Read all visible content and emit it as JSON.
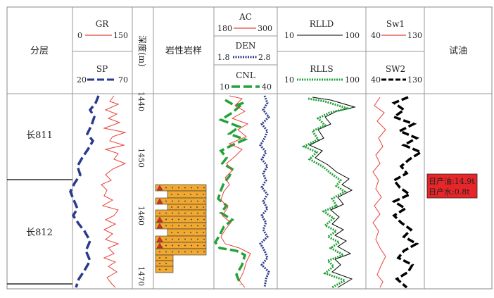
{
  "headers": {
    "layer": "分层",
    "depth": "深度(m)",
    "lithology": "岩性岩样",
    "oil_test": "试油"
  },
  "curves": {
    "gr": {
      "name": "GR",
      "min": "0",
      "max": "150",
      "color": "#e8423a"
    },
    "sp": {
      "name": "SP",
      "min": "20",
      "max": "70",
      "color": "#2a3a8c"
    },
    "ac": {
      "name": "AC",
      "min": "180",
      "max": "300",
      "color": "#e8423a"
    },
    "den": {
      "name": "DEN",
      "min": "1.8",
      "max": "2.8",
      "color": "#2a3a8c"
    },
    "cnl": {
      "name": "CNL",
      "min": "10",
      "max": "40",
      "color": "#22a33a"
    },
    "rlld": {
      "name": "RLLD",
      "min": "10",
      "max": "100",
      "color": "#000000"
    },
    "rlls": {
      "name": "RLLS",
      "min": "10",
      "max": "100",
      "color": "#22a33a"
    },
    "sw1": {
      "name": "Sw1",
      "min": "40",
      "max": "130",
      "color": "#e8423a"
    },
    "sw2": {
      "name": "SW2",
      "min": "40",
      "max": "130",
      "color": "#000000"
    }
  },
  "layers": [
    "长811",
    "长812"
  ],
  "depth_ticks": [
    "1440",
    "1450",
    "1460",
    "1470"
  ],
  "oil_test": {
    "line1": "日产油:14.9t",
    "line2": "日产水:0.8t",
    "color": "#e8262a"
  },
  "lithology_color": "#f0a830"
}
